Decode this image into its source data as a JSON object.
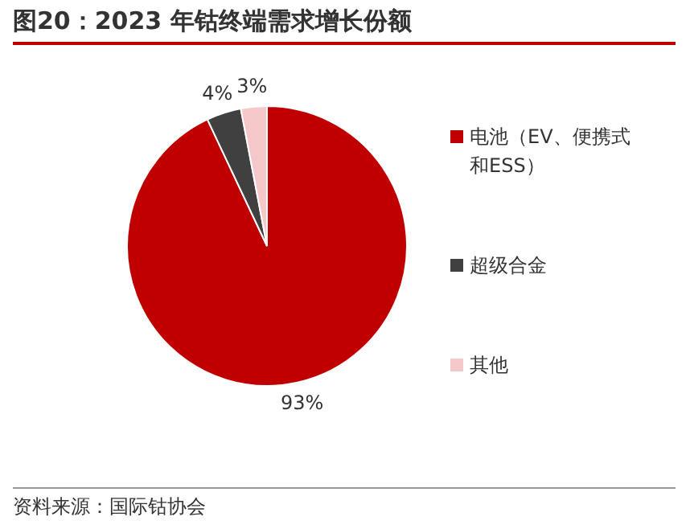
{
  "chart_data": {
    "type": "pie",
    "title": "图20：2023 年钴终端需求增长份额",
    "categories": [
      "电池（EV、便携式和ESS）",
      "超级合金",
      "其他"
    ],
    "values": [
      93,
      4,
      3
    ],
    "colors": [
      "#c00000",
      "#404040",
      "#f4c7c9"
    ],
    "value_labels": [
      "93%",
      "4%",
      "3%"
    ],
    "legend": "right",
    "annotations": [
      "资料来源：国际钴协会"
    ]
  }
}
